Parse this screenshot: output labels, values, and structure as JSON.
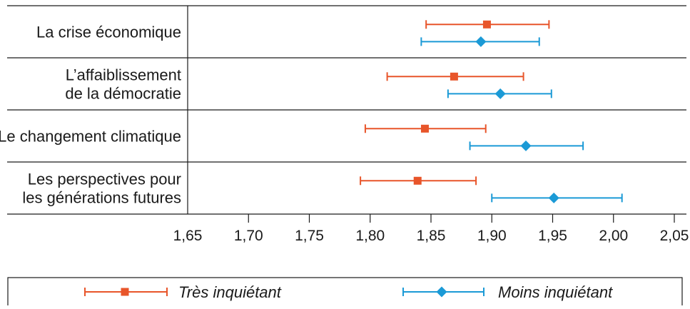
{
  "chart_data": {
    "type": "scatter",
    "subtype": "point-with-error-bars",
    "orientation": "horizontal",
    "title": "",
    "xlabel": "",
    "ylabel": "",
    "xlim": [
      1.65,
      2.05
    ],
    "x_ticks": [
      "1,65",
      "1,70",
      "1,75",
      "1,80",
      "1,85",
      "1,90",
      "1,95",
      "2,00",
      "2,05"
    ],
    "x_tick_values": [
      1.65,
      1.7,
      1.75,
      1.8,
      1.85,
      1.9,
      1.95,
      2.0,
      2.05
    ],
    "grid": false,
    "legend_position": "bottom",
    "categories": [
      [
        "La crise économique"
      ],
      [
        "L’affaiblissement",
        "de la démocratie"
      ],
      [
        "Le changement climatique"
      ],
      [
        "Les perspectives pour",
        "les générations futures"
      ]
    ],
    "series": [
      {
        "name": "Très inquiétant",
        "color": "#e8552a",
        "marker": "square",
        "values": [
          1.896,
          1.869,
          1.845,
          1.839
        ],
        "low": [
          1.846,
          1.814,
          1.796,
          1.792
        ],
        "high": [
          1.947,
          1.926,
          1.895,
          1.887
        ]
      },
      {
        "name": "Moins inquiétant",
        "color": "#1b9ad6",
        "marker": "diamond",
        "values": [
          1.891,
          1.907,
          1.928,
          1.951
        ],
        "low": [
          1.842,
          1.864,
          1.882,
          1.9
        ],
        "high": [
          1.939,
          1.949,
          1.975,
          2.007
        ]
      }
    ]
  }
}
